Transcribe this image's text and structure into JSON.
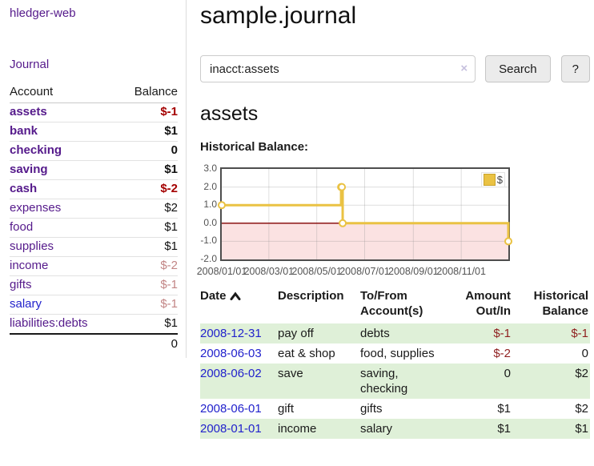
{
  "app": {
    "brand": "hledger-web"
  },
  "header": {
    "title": "sample.journal"
  },
  "search": {
    "value": "inacct:assets",
    "clear_icon": "×",
    "button_label": "Search",
    "help_label": "?"
  },
  "main": {
    "account_heading": "assets"
  },
  "sidebar": {
    "journal_label": "Journal",
    "accounts_table": {
      "headers": {
        "account": "Account",
        "balance": "Balance"
      },
      "rows": [
        {
          "name": "assets",
          "indent": 1,
          "bold": true,
          "balance": "$-1",
          "balance_style": "neg-strong"
        },
        {
          "name": "bank",
          "indent": 2,
          "bold": true,
          "balance": "$1",
          "balance_style": "pos"
        },
        {
          "name": "checking",
          "indent": 3,
          "bold": true,
          "balance": "0",
          "balance_style": "pos"
        },
        {
          "name": "saving",
          "indent": 3,
          "bold": true,
          "balance": "$1",
          "balance_style": "pos"
        },
        {
          "name": "cash",
          "indent": 2,
          "bold": true,
          "balance": "$-2",
          "balance_style": "neg-strong"
        },
        {
          "name": "expenses",
          "indent": 1,
          "bold": false,
          "balance": "$2",
          "balance_style": "pos"
        },
        {
          "name": "food",
          "indent": 2,
          "bold": false,
          "balance": "$1",
          "balance_style": "pos"
        },
        {
          "name": "supplies",
          "indent": 2,
          "bold": false,
          "balance": "$1",
          "balance_style": "pos"
        },
        {
          "name": "income",
          "indent": 1,
          "bold": false,
          "balance": "$-2",
          "balance_style": "neg-muted"
        },
        {
          "name": "gifts",
          "indent": 2,
          "bold": false,
          "balance": "$-1",
          "balance_style": "neg-muted"
        },
        {
          "name": "salary",
          "indent": 2,
          "bold": false,
          "link_color": "blue",
          "balance": "$-1",
          "balance_style": "neg-muted"
        },
        {
          "name": "liabilities:debts",
          "indent": 1,
          "bold": false,
          "balance": "$1",
          "balance_style": "pos"
        }
      ],
      "total": "0"
    }
  },
  "chart_data": {
    "type": "line",
    "step": true,
    "title": "Historical Balance:",
    "legend_label": "$",
    "legend_position": "top-right",
    "grid": true,
    "x_start": "2008-01-01",
    "x_end": "2008-12-31",
    "points": [
      [
        "2008-01-01",
        1
      ],
      [
        "2008-06-01",
        2
      ],
      [
        "2008-06-02",
        2
      ],
      [
        "2008-06-03",
        0
      ],
      [
        "2008-12-31",
        -1
      ]
    ],
    "x_tick_dates": [
      "2008-01-01",
      "2008-03-01",
      "2008-05-01",
      "2008-07-01",
      "2008-09-01",
      "2008-11-01"
    ],
    "x_tick_labels": [
      "2008/01/01",
      "2008/03/01",
      "2008/05/01",
      "2008/07/01",
      "2008/09/01",
      "2008/11/01"
    ],
    "y_ticks": [
      "3.0",
      "2.0",
      "1.0",
      "0.0",
      "-1.0",
      "-2.0"
    ],
    "ylim": [
      -2,
      3
    ],
    "series_color": "#eac243",
    "negative_region_color": "#fbe2e2",
    "zero_line_color": "#8b1414",
    "grid_color": "#888888",
    "axis_text_color": "#545454",
    "border_color": "#4d4d4d"
  },
  "transactions": {
    "headers": {
      "date": "Date",
      "description": "Description",
      "tofrom": "To/From Account(s)",
      "amount": "Amount Out/In",
      "balance": "Historical Balance"
    },
    "sort": "date-ascending",
    "rows": [
      {
        "date": "2008-12-31",
        "description": "pay off",
        "accounts": "debts",
        "amount": "$-1",
        "amount_neg": true,
        "balance": "$-1",
        "balance_neg": true,
        "shaded": true
      },
      {
        "date": "2008-06-03",
        "description": "eat & shop",
        "accounts": "food, supplies",
        "amount": "$-2",
        "amount_neg": true,
        "balance": "0",
        "balance_neg": false,
        "shaded": false
      },
      {
        "date": "2008-06-02",
        "description": "save",
        "accounts": "saving, checking",
        "amount": "0",
        "amount_neg": false,
        "balance": "$2",
        "balance_neg": false,
        "shaded": true
      },
      {
        "date": "2008-06-01",
        "description": "gift",
        "accounts": "gifts",
        "amount": "$1",
        "amount_neg": false,
        "balance": "$2",
        "balance_neg": false,
        "shaded": false
      },
      {
        "date": "2008-01-01",
        "description": "income",
        "accounts": "salary",
        "amount": "$1",
        "amount_neg": false,
        "balance": "$1",
        "balance_neg": false,
        "shaded": true
      }
    ]
  },
  "colors": {
    "link_purple": "#551A8B",
    "link_blue": "#2222cc",
    "negative_strong": "#a40000",
    "negative_muted": "#c28585",
    "negative_table": "#8f1f1f",
    "row_shade_green": "#dff0d8",
    "button_bg": "#ebebeb"
  }
}
